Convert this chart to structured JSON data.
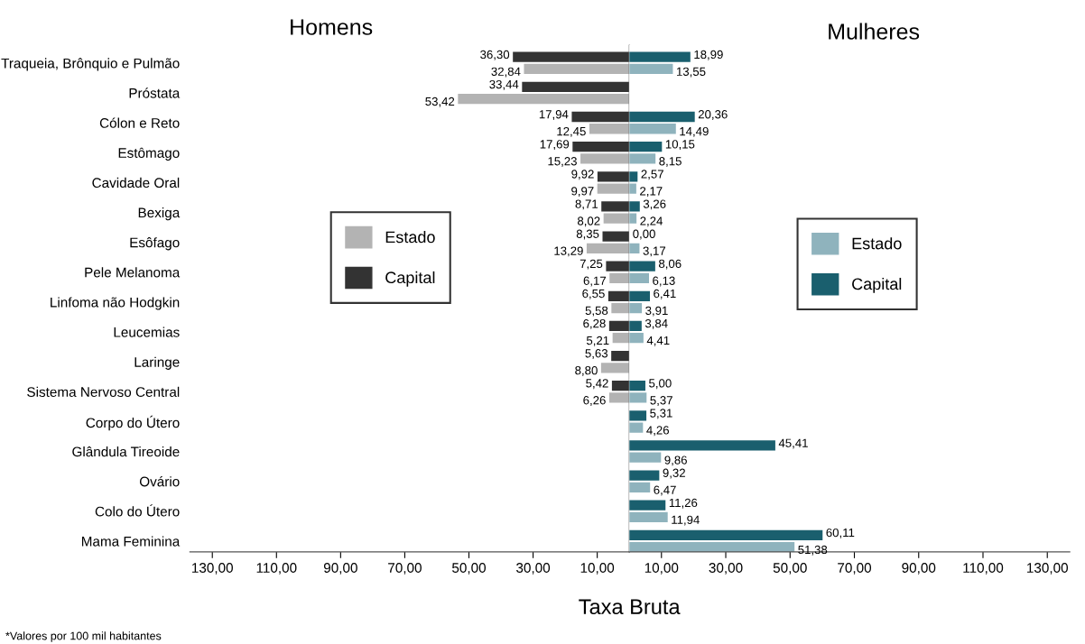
{
  "chart_data": [
    {
      "type": "bar",
      "orientation": "horizontal",
      "annotations": [
        "Homens",
        "*Valores por 100 mil habitantes"
      ],
      "categories": [
        "Traqueia, Brônquio e Pulmão",
        "Próstata",
        "Cólon e Reto",
        "Estômago",
        "Cavidade Oral",
        "Bexiga",
        "Esôfago",
        "Pele Melanoma",
        "Linfoma não Hodgkin",
        "Leucemias",
        "Laringe",
        "Sistema Nervoso Central",
        "Corpo do Útero",
        "Glândula Tireoide",
        "Ovário",
        "Colo do Útero",
        "Mama Feminina"
      ],
      "series": [
        {
          "name": "Capital",
          "color": "#333333",
          "values": [
            36.3,
            33.44,
            17.94,
            17.69,
            9.92,
            8.71,
            8.35,
            7.25,
            6.55,
            6.28,
            5.63,
            5.42,
            null,
            null,
            null,
            null,
            null
          ],
          "value_labels": [
            "36,30",
            "33,44",
            "17,94",
            "17,69",
            "9,92",
            "8,71",
            "8,35",
            "7,25",
            "6,55",
            "6,28",
            "5,63",
            "5,42",
            null,
            null,
            null,
            null,
            null
          ]
        },
        {
          "name": "Estado",
          "color": "#b3b3b3",
          "values": [
            32.84,
            53.42,
            12.45,
            15.23,
            9.97,
            8.02,
            13.29,
            6.17,
            5.58,
            5.21,
            8.8,
            6.26,
            null,
            null,
            null,
            null,
            null
          ],
          "value_labels": [
            "32,84",
            "53,42",
            "12,45",
            "15,23",
            "9,97",
            "8,02",
            "13,29",
            "6,17",
            "5,58",
            "5,21",
            "8,80",
            "6,26",
            null,
            null,
            null,
            null,
            null
          ]
        }
      ],
      "xlim": [
        137,
        0
      ],
      "xticks": [
        {
          "value": 130,
          "label": "130,00"
        },
        {
          "value": 110,
          "label": "110,00"
        },
        {
          "value": 90,
          "label": "90,00"
        },
        {
          "value": 70,
          "label": "70,00"
        },
        {
          "value": 50,
          "label": "50,00"
        },
        {
          "value": 30,
          "label": "30,00"
        },
        {
          "value": 10,
          "label": "10,00"
        }
      ],
      "legend": "center"
    },
    {
      "type": "bar",
      "orientation": "horizontal",
      "annotations": [
        "Mulheres"
      ],
      "xlabel": "Taxa Bruta",
      "tick_labels": "x",
      "series": [
        {
          "name": "Capital",
          "color": "#1a5f6e",
          "values": [
            18.99,
            null,
            20.36,
            10.15,
            2.57,
            3.26,
            0.0,
            8.06,
            6.41,
            3.84,
            null,
            5.0,
            5.31,
            45.41,
            9.32,
            11.26,
            60.11
          ],
          "value_labels": [
            "18,99",
            null,
            "20,36",
            "10,15",
            "2,57",
            "3,26",
            "0,00",
            "8,06",
            "6,41",
            "3,84",
            null,
            "5,00",
            "5,31",
            "45,41",
            "9,32",
            "11,26",
            "60,11"
          ]
        },
        {
          "name": "Estado",
          "color": "#8fb3bd",
          "values": [
            13.55,
            null,
            14.49,
            8.15,
            2.17,
            2.24,
            3.17,
            6.13,
            3.91,
            4.41,
            null,
            5.37,
            4.26,
            9.86,
            6.47,
            11.94,
            51.38
          ],
          "value_labels": [
            "13,55",
            null,
            "14,49",
            "8,15",
            "2,17",
            "2,24",
            "3,17",
            "6,13",
            "3,91",
            "4,41",
            null,
            "5,37",
            "4,26",
            "9,86",
            "6,47",
            "11,94",
            "51,38"
          ]
        }
      ],
      "xlim": [
        0,
        137
      ],
      "xticks": [
        {
          "value": 10,
          "label": "10,00"
        },
        {
          "value": 30,
          "label": "30,00"
        },
        {
          "value": 50,
          "label": "50,00"
        },
        {
          "value": 70,
          "label": "70,00"
        },
        {
          "value": 90,
          "label": "90,00"
        },
        {
          "value": 110,
          "label": "110,00"
        },
        {
          "value": 130,
          "label": "130,00"
        }
      ],
      "legend": "center"
    }
  ]
}
